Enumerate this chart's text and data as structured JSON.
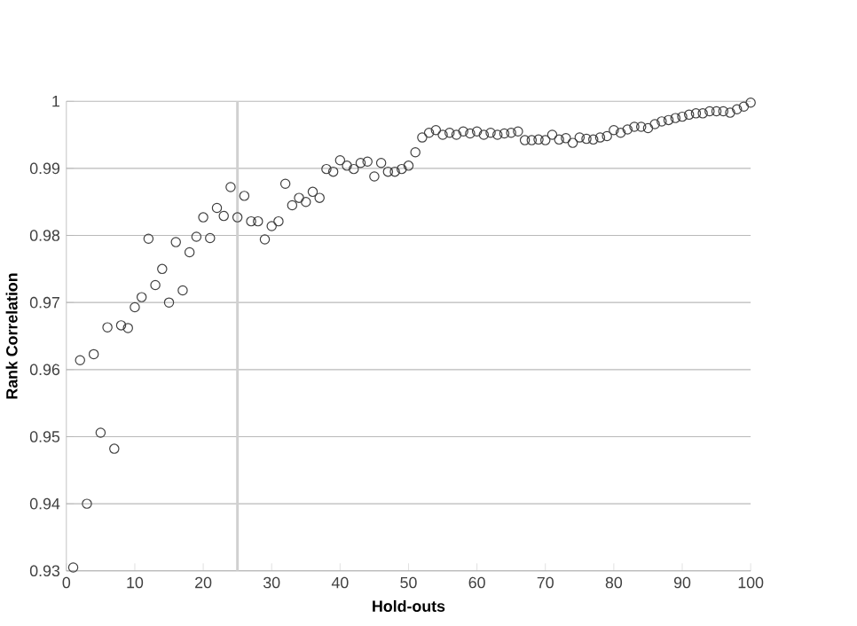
{
  "chart_data": {
    "type": "scatter",
    "xlabel": "Hold-outs",
    "ylabel": "Rank Correlation",
    "x": [
      1,
      2,
      3,
      4,
      5,
      6,
      7,
      8,
      9,
      10,
      11,
      12,
      13,
      14,
      15,
      16,
      17,
      18,
      19,
      20,
      21,
      22,
      23,
      24,
      25,
      26,
      27,
      28,
      29,
      30,
      31,
      32,
      33,
      34,
      35,
      36,
      37,
      38,
      39,
      40,
      41,
      42,
      43,
      44,
      45,
      46,
      47,
      48,
      49,
      50,
      51,
      52,
      53,
      54,
      55,
      56,
      57,
      58,
      59,
      60,
      61,
      62,
      63,
      64,
      65,
      66,
      67,
      68,
      69,
      70,
      71,
      72,
      73,
      74,
      75,
      76,
      77,
      78,
      79,
      80,
      81,
      82,
      83,
      84,
      85,
      86,
      87,
      88,
      89,
      90,
      91,
      92,
      93,
      94,
      95,
      96,
      97,
      98,
      99,
      100
    ],
    "values": [
      0.9305,
      0.9614,
      0.94,
      0.9623,
      0.9506,
      0.9663,
      0.9482,
      0.9666,
      0.9662,
      0.9693,
      0.9708,
      0.9795,
      0.9726,
      0.975,
      0.97,
      0.979,
      0.9718,
      0.9775,
      0.9798,
      0.9827,
      0.9796,
      0.9841,
      0.9829,
      0.9872,
      0.9827,
      0.9859,
      0.9821,
      0.9821,
      0.9794,
      0.9814,
      0.9821,
      0.9877,
      0.9845,
      0.9856,
      0.985,
      0.9865,
      0.9856,
      0.9899,
      0.9895,
      0.9912,
      0.9904,
      0.9899,
      0.9908,
      0.991,
      0.9888,
      0.9908,
      0.9895,
      0.9895,
      0.9899,
      0.9904,
      0.9924,
      0.9946,
      0.9953,
      0.9957,
      0.995,
      0.9953,
      0.995,
      0.9955,
      0.9952,
      0.9955,
      0.995,
      0.9953,
      0.995,
      0.9952,
      0.9953,
      0.9955,
      0.9942,
      0.9942,
      0.9943,
      0.9942,
      0.995,
      0.9943,
      0.9945,
      0.9938,
      0.9946,
      0.9944,
      0.9943,
      0.9946,
      0.9948,
      0.9957,
      0.9953,
      0.9958,
      0.9962,
      0.9962,
      0.996,
      0.9966,
      0.997,
      0.9972,
      0.9975,
      0.9977,
      0.998,
      0.9982,
      0.9982,
      0.9985,
      0.9985,
      0.9985,
      0.9983,
      0.9988,
      0.9992,
      0.9998
    ],
    "color": "#404040",
    "marker": "circle",
    "xlim": [
      0,
      100
    ],
    "xticks": [
      0,
      10,
      20,
      30,
      40,
      50,
      60,
      70,
      80,
      90,
      100
    ],
    "ylim": [
      0.93,
      1
    ],
    "yticks": [
      0.93,
      0.94,
      0.95,
      0.96,
      0.97,
      0.98,
      0.99,
      1
    ],
    "grid": "y",
    "ref_lines": [
      {
        "axis": "x",
        "value": 25,
        "color": "#d0d0d0"
      }
    ]
  }
}
